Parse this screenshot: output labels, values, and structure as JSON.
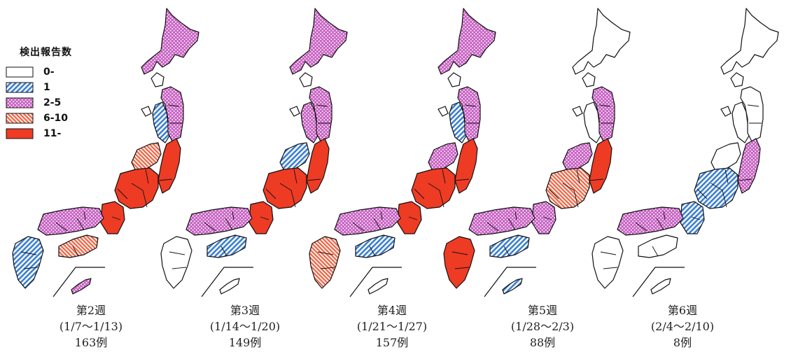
{
  "legend": {
    "title": "検出報告数",
    "items": [
      {
        "key": "c0",
        "label": "0-"
      },
      {
        "key": "c1",
        "label": "1"
      },
      {
        "key": "c2",
        "label": "2-5"
      },
      {
        "key": "c3",
        "label": "6-10"
      },
      {
        "key": "c4",
        "label": "11-"
      }
    ]
  },
  "colors": {
    "outline": "#111111",
    "blue": "#3b7fcf",
    "pink": "#c964c4",
    "orange": "#ee6a4a",
    "red": "#ee3b24"
  },
  "weeks": [
    {
      "label": "第2週",
      "range": "(1/7～1/13)",
      "count": "163例",
      "regions": {
        "hokkaido": "c2",
        "tohoku": "c1",
        "tohoku_east": "c2",
        "kanto": "c4",
        "hokuriku": "c3",
        "chubu": "c4",
        "kinki": "c4",
        "chugoku": "c2",
        "shikoku": "c3",
        "kyushu": "c1",
        "okinawa": "c2"
      }
    },
    {
      "label": "第3週",
      "range": "(1/14～1/20)",
      "count": "149例",
      "regions": {
        "hokkaido": "c2",
        "tohoku": "c2",
        "tohoku_east": "c2",
        "kanto": "c4",
        "hokuriku": "c1",
        "chubu": "c4",
        "kinki": "c4",
        "chugoku": "c2",
        "shikoku": "c1",
        "kyushu": "c0",
        "okinawa": "c0"
      }
    },
    {
      "label": "第4週",
      "range": "(1/21～1/27)",
      "count": "157例",
      "regions": {
        "hokkaido": "c2",
        "tohoku": "c1",
        "tohoku_east": "c2",
        "kanto": "c4",
        "hokuriku": "c2",
        "chubu": "c4",
        "kinki": "c4",
        "chugoku": "c2",
        "shikoku": "c1",
        "kyushu": "c3",
        "okinawa": "c0"
      }
    },
    {
      "label": "第5週",
      "range": "(1/28～2/3)",
      "count": "88例",
      "regions": {
        "hokkaido": "c0",
        "tohoku": "c0",
        "tohoku_east": "c2",
        "kanto": "c4",
        "hokuriku": "c2",
        "chubu": "c3",
        "kinki": "c2",
        "chugoku": "c2",
        "shikoku": "c1",
        "kyushu": "c4",
        "okinawa": "c1"
      }
    },
    {
      "label": "第6週",
      "range": "(2/4～2/10)",
      "count": "8例",
      "regions": {
        "hokkaido": "c0",
        "tohoku": "c0",
        "tohoku_east": "c0",
        "kanto": "c2",
        "hokuriku": "c0",
        "chubu": "c1",
        "kinki": "c1",
        "chugoku": "c2",
        "shikoku": "c0",
        "kyushu": "c0",
        "okinawa": "c0"
      }
    }
  ]
}
